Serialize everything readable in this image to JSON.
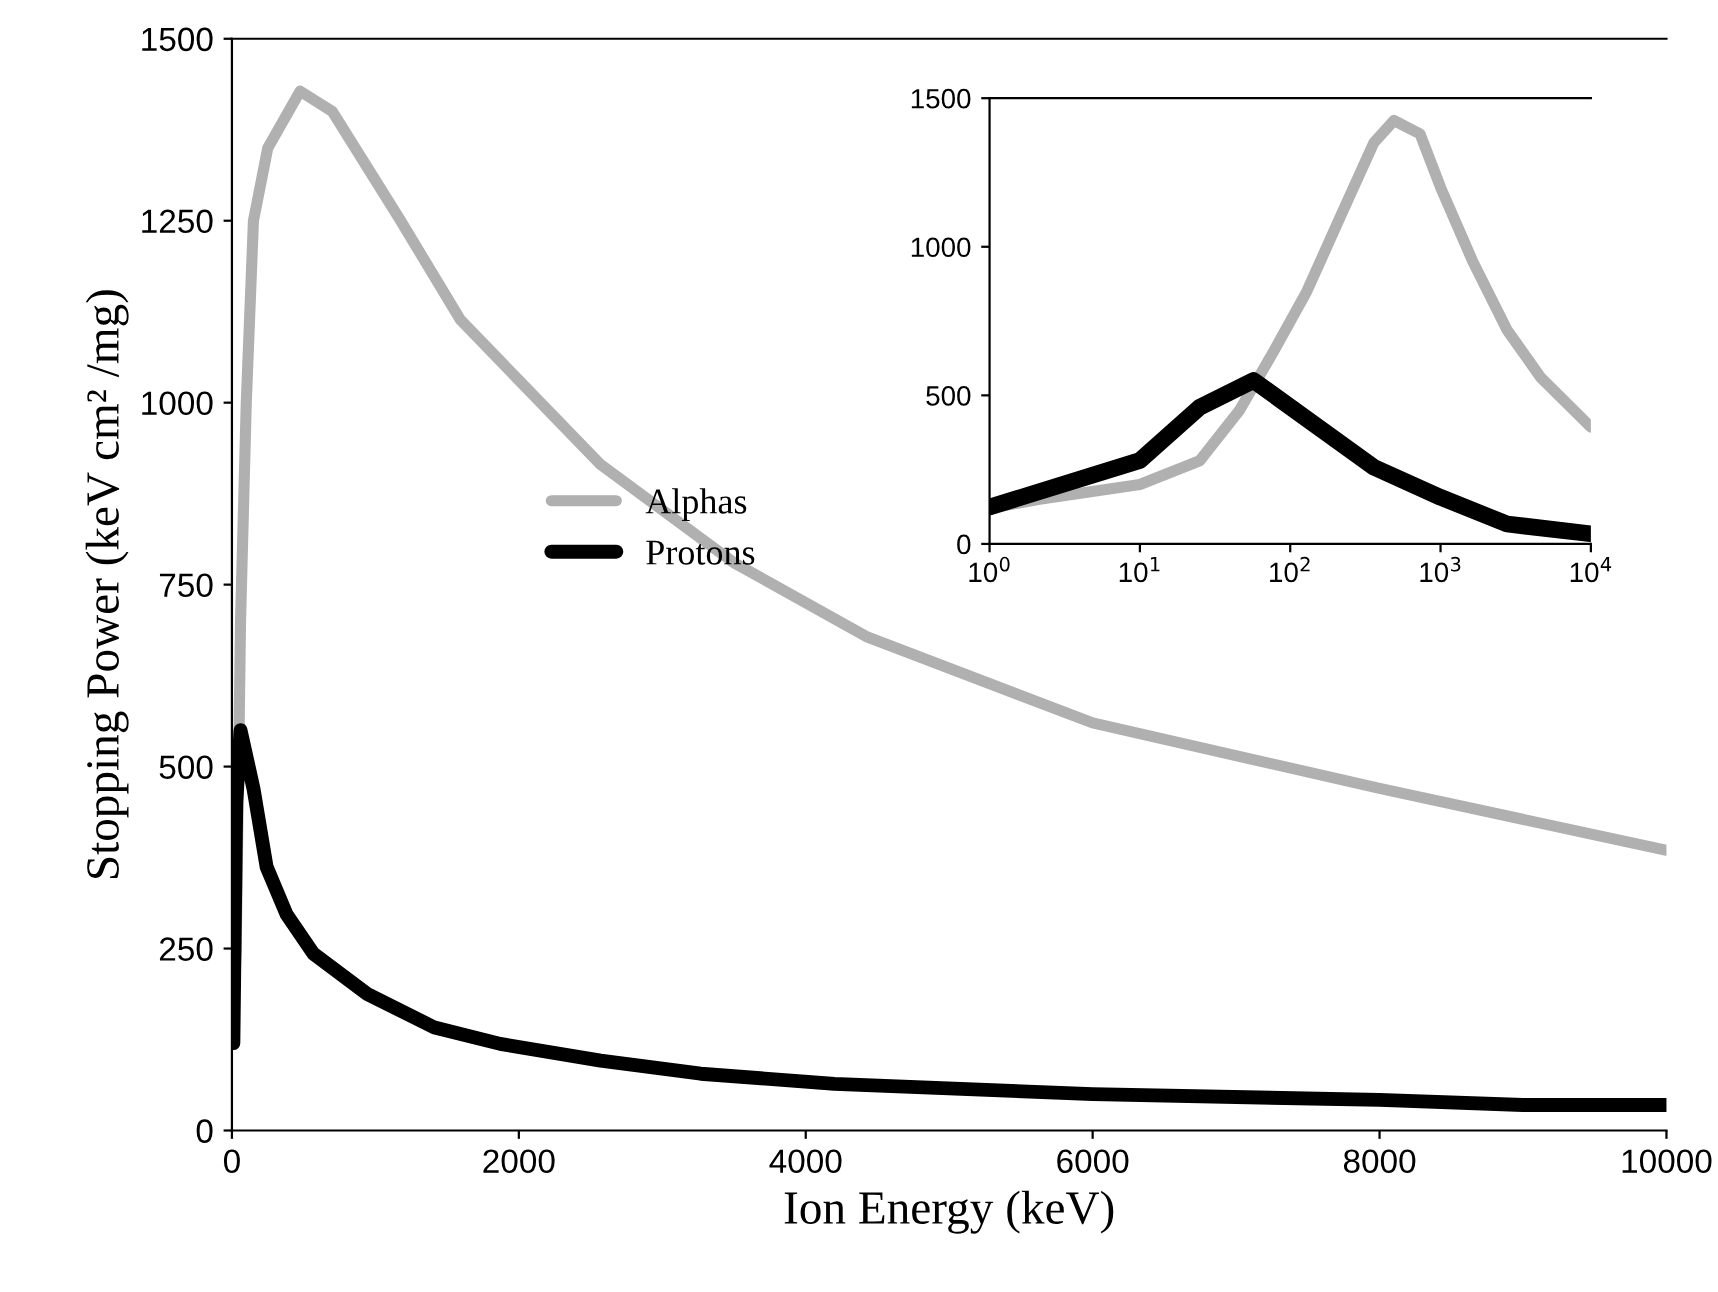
{
  "chart_data": [
    {
      "type": "line",
      "xlabel": "Ion Energy (keV)",
      "ylabel": "Stopping Power (keV cm² /mg)",
      "xlim": [
        0,
        10000
      ],
      "ylim": [
        0,
        1500
      ],
      "xticks": [
        0,
        2000,
        4000,
        6000,
        8000,
        10000
      ],
      "yticks": [
        0,
        250,
        500,
        750,
        1000,
        1250,
        1500
      ],
      "legend": "center left",
      "grid": false,
      "series": [
        {
          "name": "Alphas",
          "color": "#b0b0b0",
          "x": [
            1,
            30,
            60,
            100,
            150,
            250,
            475,
            700,
            1173,
            1592,
            2570,
            3500,
            4430,
            6000,
            8000,
            10000
          ],
          "values": [
            120,
            250,
            700,
            1000,
            1250,
            1350,
            1428,
            1400,
            1251,
            1114,
            915,
            780,
            678,
            560,
            470,
            385
          ]
        },
        {
          "name": "Protons",
          "color": "#000000",
          "x": [
            10,
            30,
            60,
            150,
            242,
            381,
            568,
            940,
            1406,
            1870,
            2570,
            3268,
            4200,
            6000,
            8000,
            9000,
            10000
          ],
          "values": [
            120,
            450,
            550,
            470,
            362,
            297,
            243,
            188,
            142,
            119,
            96,
            78,
            64,
            50,
            42,
            35,
            35
          ]
        }
      ]
    },
    {
      "type": "line",
      "log": "x",
      "xlim": [
        1,
        10000
      ],
      "ylim": [
        0,
        1500
      ],
      "xticks": [
        {
          "value": 1,
          "label": "10$^{0}$"
        },
        {
          "value": 10,
          "label": "10$^{1}$"
        },
        {
          "value": 100,
          "label": "10$^{2}$"
        },
        {
          "value": 1000,
          "label": "10$^{3}$"
        },
        {
          "value": 10000,
          "label": "10$^{4}$"
        }
      ],
      "yticks": [
        0,
        500,
        1000,
        1500
      ],
      "grid": false,
      "series": [
        {
          "color": "#b0b0b0",
          "x": [
            1,
            2.15,
            10,
            25,
            46,
            78,
            129,
            215,
            360,
            490,
            730,
            1000,
            1640,
            2770,
            4640,
            10000
          ],
          "values": [
            120,
            150,
            200,
            280,
            450,
            650,
            850,
            1100,
            1350,
            1425,
            1380,
            1200,
            950,
            720,
            560,
            393
          ]
        },
        {
          "color": "#000000",
          "x": [
            1,
            10,
            25,
            57,
            360,
            1000,
            2770,
            10000
          ],
          "values": [
            124,
            281,
            460,
            550,
            258,
            157,
            67,
            34
          ]
        }
      ]
    }
  ]
}
